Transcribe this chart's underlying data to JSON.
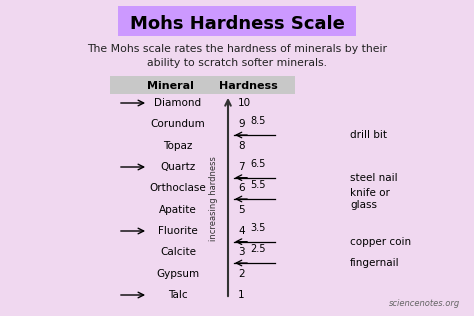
{
  "title": "Mohs Hardness Scale",
  "subtitle": "The Mohs scale rates the hardness of minerals by their\nability to scratch softer minerals.",
  "background_color": "#f0d8f0",
  "title_bg_color": "#cc99ff",
  "minerals": [
    "Diamond",
    "Corundum",
    "Topaz",
    "Quartz",
    "Orthoclase",
    "Apatite",
    "Fluorite",
    "Calcite",
    "Gypsum",
    "Talc"
  ],
  "hardness_values": [
    10,
    9,
    8,
    7,
    6,
    5,
    4,
    3,
    2,
    1
  ],
  "arrow_minerals": [
    "Diamond",
    "Quartz",
    "Fluorite",
    "Talc"
  ],
  "col_header_mineral": "Mineral",
  "col_header_hardness": "Hardness",
  "axis_label": "increasing hardness",
  "reference_labels": [
    {
      "hardness": 8.5,
      "label": "8.5",
      "tool": "drill bit"
    },
    {
      "hardness": 6.5,
      "label": "6.5",
      "tool": "steel nail"
    },
    {
      "hardness": 5.5,
      "label": "5.5",
      "tool": "knife or\nglass"
    },
    {
      "hardness": 3.5,
      "label": "3.5",
      "tool": "copper coin"
    },
    {
      "hardness": 2.5,
      "label": "2.5",
      "tool": "fingernail"
    }
  ],
  "watermark": "sciencenotes.org",
  "header_bg_color": "#c8c8c8",
  "axis_color": "#333333",
  "text_color": "#000000",
  "title_color": "#000000",
  "subtitle_color": "#222222",
  "arrow_color": "#000000",
  "title_fontsize": 13,
  "subtitle_fontsize": 7.8,
  "mineral_fontsize": 7.5,
  "header_fontsize": 8.0,
  "ref_fontsize": 7.0,
  "tool_fontsize": 7.5,
  "axis_label_fontsize": 6.0,
  "watermark_fontsize": 6.0
}
